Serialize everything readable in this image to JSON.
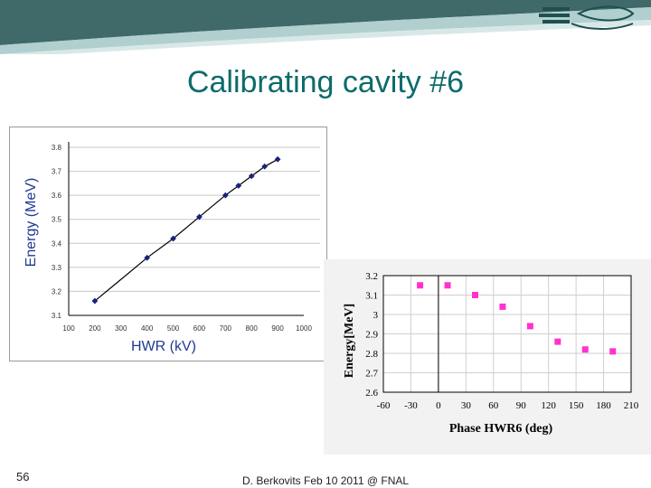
{
  "slide": {
    "title": "Calibrating cavity #6",
    "page_number": "56",
    "footer": "D. Berkovits Feb 10 2011 @ FNAL"
  },
  "colors": {
    "title": "#0e6b6b",
    "banner_dark": "#1f4f4f",
    "banner_light": "#9ec3c3",
    "series1": "#1a237e",
    "series2": "#ff33cc"
  },
  "chart_data": [
    {
      "type": "line",
      "title": "",
      "xlabel": "HWR (kV)",
      "ylabel": "Energy (MeV)",
      "xlim": [
        100,
        1000
      ],
      "ylim": [
        3.1,
        3.8
      ],
      "xticks": [
        "100",
        "200",
        "300",
        "400",
        "500",
        "600",
        "700",
        "800",
        "900",
        "1000"
      ],
      "yticks": [
        "3.1",
        "3.2",
        "3.3",
        "3.4",
        "3.5",
        "3.6",
        "3.7",
        "3.8"
      ],
      "marker": "diamond",
      "grid": "horizontal",
      "series": [
        {
          "x": [
            200,
            400,
            500,
            600,
            700,
            750,
            800,
            850,
            900
          ],
          "y": [
            3.16,
            3.34,
            3.42,
            3.51,
            3.6,
            3.64,
            3.68,
            3.72,
            3.75
          ]
        }
      ]
    },
    {
      "type": "scatter",
      "title": "",
      "xlabel": "Phase HWR6 (deg)",
      "ylabel": "Energy[MeV]",
      "xlim": [
        -60,
        210
      ],
      "ylim": [
        2.6,
        3.2
      ],
      "xticks": [
        "-60",
        "-30",
        "0",
        "30",
        "60",
        "90",
        "120",
        "150",
        "180",
        "210"
      ],
      "yticks": [
        "2.6",
        "2.7",
        "2.8",
        "2.9",
        "3",
        "3.1",
        "3.2"
      ],
      "marker": "square",
      "grid": "both",
      "series": [
        {
          "x": [
            -20,
            10,
            40,
            70,
            100,
            130,
            160,
            190
          ],
          "y": [
            3.15,
            3.15,
            3.1,
            3.04,
            2.94,
            2.86,
            2.82,
            2.81
          ]
        }
      ]
    }
  ]
}
